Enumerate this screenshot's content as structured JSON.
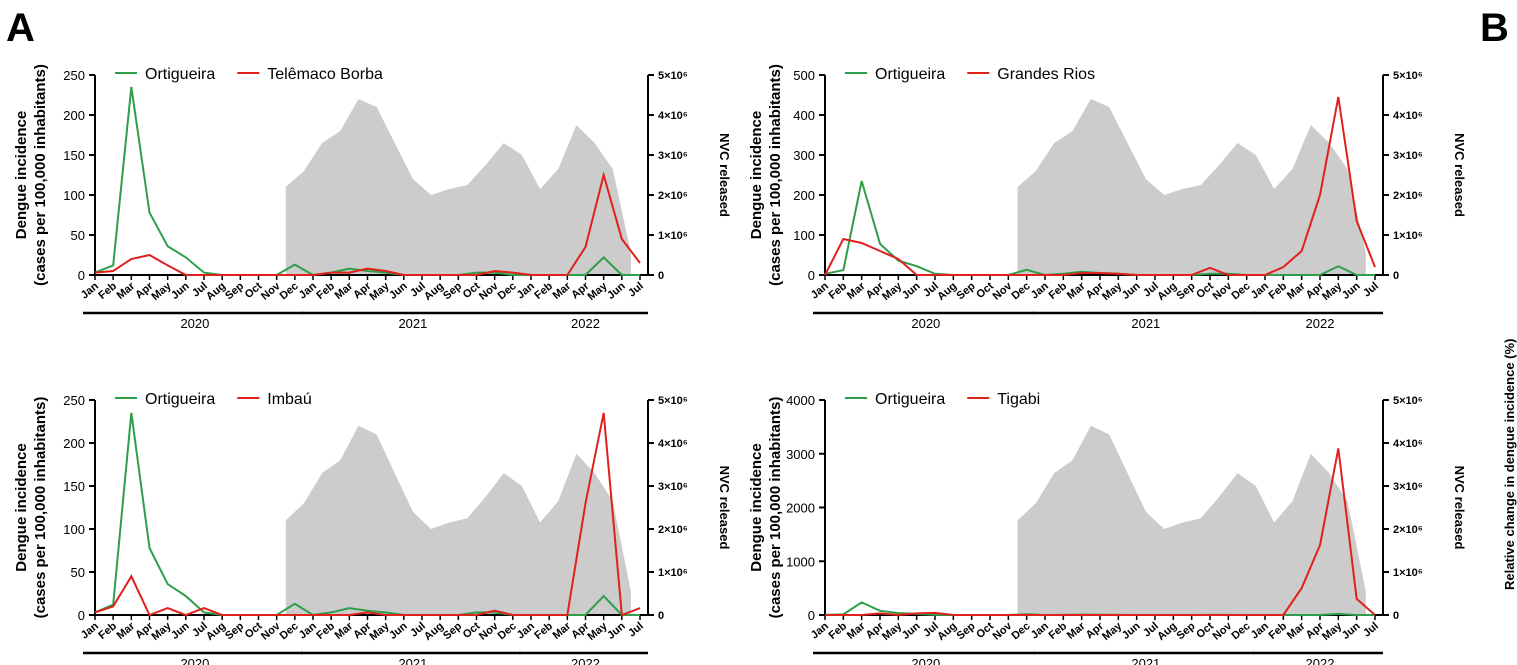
{
  "panel_labels": {
    "a": "A",
    "b": "B"
  },
  "side_label_b": "Relative change in dengue incidence (%)",
  "colors": {
    "ortigueira": "#2e9e4a",
    "comparison": "#e0201b",
    "nvc_fill": "#cccccc"
  },
  "months": [
    "Jan",
    "Feb",
    "Mar",
    "Apr",
    "May",
    "Jun",
    "Jul",
    "Aug",
    "Sep",
    "Oct",
    "Nov",
    "Dec",
    "Jan",
    "Feb",
    "Mar",
    "Apr",
    "May",
    "Jun",
    "Jul",
    "Aug",
    "Sep",
    "Oct",
    "Nov",
    "Dec",
    "Jan",
    "Feb",
    "Mar",
    "Apr",
    "May",
    "Jun",
    "Jul"
  ],
  "year_labels": [
    "2020",
    "2021",
    "2022"
  ],
  "chart_data": [
    {
      "type": "line",
      "ylabel_line1": "Dengue incidence",
      "ylabel_line2": "(cases per 100,000 inhabitants)",
      "y2label": "NVC released",
      "ylim": [
        0,
        250
      ],
      "yticks": [
        "0",
        "50",
        "100",
        "150",
        "200",
        "250"
      ],
      "y2ticks": [
        "0",
        "1×10⁶",
        "2×10⁶",
        "3×10⁶",
        "4×10⁶",
        "5×10⁶"
      ],
      "series": [
        {
          "name": "Ortigueira",
          "color": "#2e9e4a",
          "values": [
            3,
            12,
            235,
            78,
            36,
            22,
            3,
            0,
            0,
            0,
            0,
            13,
            0,
            3,
            8,
            5,
            3,
            0,
            0,
            0,
            0,
            3,
            3,
            0,
            0,
            0,
            0,
            0,
            22,
            0,
            0
          ]
        },
        {
          "name": "Telêmaco Borba",
          "color": "#e0201b",
          "values": [
            3,
            5,
            20,
            25,
            12,
            0,
            0,
            0,
            0,
            0,
            0,
            0,
            0,
            3,
            3,
            8,
            5,
            0,
            0,
            0,
            0,
            0,
            5,
            3,
            0,
            0,
            0,
            35,
            125,
            45,
            15
          ]
        }
      ]
    },
    {
      "type": "line",
      "ylabel_line1": "Dengue incidence",
      "ylabel_line2": "(cases per 100,000 inhabitants)",
      "y2label": "NVC released",
      "ylim": [
        0,
        500
      ],
      "yticks": [
        "0",
        "100",
        "200",
        "300",
        "400",
        "500"
      ],
      "y2ticks": [
        "0",
        "1×10⁶",
        "2×10⁶",
        "3×10⁶",
        "4×10⁶",
        "5×10⁶"
      ],
      "series": [
        {
          "name": "Ortigueira",
          "color": "#2e9e4a",
          "values": [
            3,
            12,
            235,
            78,
            36,
            22,
            3,
            0,
            0,
            0,
            0,
            13,
            0,
            3,
            8,
            5,
            3,
            0,
            0,
            0,
            0,
            3,
            3,
            0,
            0,
            0,
            0,
            0,
            22,
            0,
            0
          ]
        },
        {
          "name": "Grandes Rios",
          "color": "#e0201b",
          "values": [
            0,
            90,
            80,
            60,
            40,
            0,
            0,
            0,
            0,
            0,
            0,
            0,
            0,
            0,
            5,
            5,
            3,
            0,
            0,
            0,
            0,
            18,
            0,
            0,
            0,
            20,
            60,
            200,
            445,
            135,
            20
          ]
        }
      ]
    },
    {
      "type": "line",
      "ylabel_line1": "Dengue incidence",
      "ylabel_line2": "(cases per 100,000 inhabitants)",
      "y2label": "NVC released",
      "ylim": [
        0,
        250
      ],
      "yticks": [
        "0",
        "50",
        "100",
        "150",
        "200",
        "250"
      ],
      "y2ticks": [
        "0",
        "1×10⁶",
        "2×10⁶",
        "3×10⁶",
        "4×10⁶",
        "5×10⁶"
      ],
      "series": [
        {
          "name": "Ortigueira",
          "color": "#2e9e4a",
          "values": [
            3,
            12,
            235,
            78,
            36,
            22,
            3,
            0,
            0,
            0,
            0,
            13,
            0,
            3,
            8,
            5,
            3,
            0,
            0,
            0,
            0,
            3,
            3,
            0,
            0,
            0,
            0,
            0,
            22,
            0,
            0
          ]
        },
        {
          "name": "Imbaú",
          "color": "#e0201b",
          "values": [
            3,
            10,
            45,
            0,
            8,
            0,
            8,
            0,
            0,
            0,
            0,
            0,
            0,
            0,
            0,
            3,
            0,
            0,
            0,
            0,
            0,
            0,
            5,
            0,
            0,
            0,
            0,
            130,
            235,
            0,
            8
          ]
        }
      ]
    },
    {
      "type": "line",
      "ylabel_line1": "Dengue incidence",
      "ylabel_line2": "(cases per 100,000 inhabitants)",
      "y2label": "NVC released",
      "ylim": [
        0,
        4000
      ],
      "yticks": [
        "0",
        "1000",
        "2000",
        "3000",
        "4000"
      ],
      "y2ticks": [
        "0",
        "1×10⁶",
        "2×10⁶",
        "3×10⁶",
        "4×10⁶",
        "5×10⁶"
      ],
      "series": [
        {
          "name": "Ortigueira",
          "color": "#2e9e4a",
          "values": [
            3,
            12,
            235,
            78,
            36,
            22,
            3,
            0,
            0,
            0,
            0,
            13,
            0,
            3,
            8,
            5,
            3,
            0,
            0,
            0,
            0,
            3,
            3,
            0,
            0,
            0,
            0,
            0,
            22,
            0,
            0
          ]
        },
        {
          "name": "Tigabi",
          "color": "#e0201b",
          "values": [
            0,
            0,
            0,
            30,
            0,
            30,
            40,
            0,
            0,
            0,
            0,
            0,
            0,
            0,
            0,
            0,
            0,
            0,
            0,
            0,
            0,
            0,
            0,
            0,
            0,
            0,
            500,
            1300,
            3100,
            300,
            0
          ]
        }
      ]
    }
  ],
  "nvc_released": [
    2200000.0,
    2600000.0,
    3300000.0,
    3600000.0,
    4400000.0,
    4200000.0,
    3300000.0,
    2400000.0,
    2000000.0,
    2150000.0,
    2250000.0,
    2750000.0,
    3300000.0,
    3000000.0,
    2150000.0,
    2650000.0,
    3750000.0,
    3300000.0,
    2650000.0,
    550000.0
  ],
  "nvc_start_month_index": 11
}
